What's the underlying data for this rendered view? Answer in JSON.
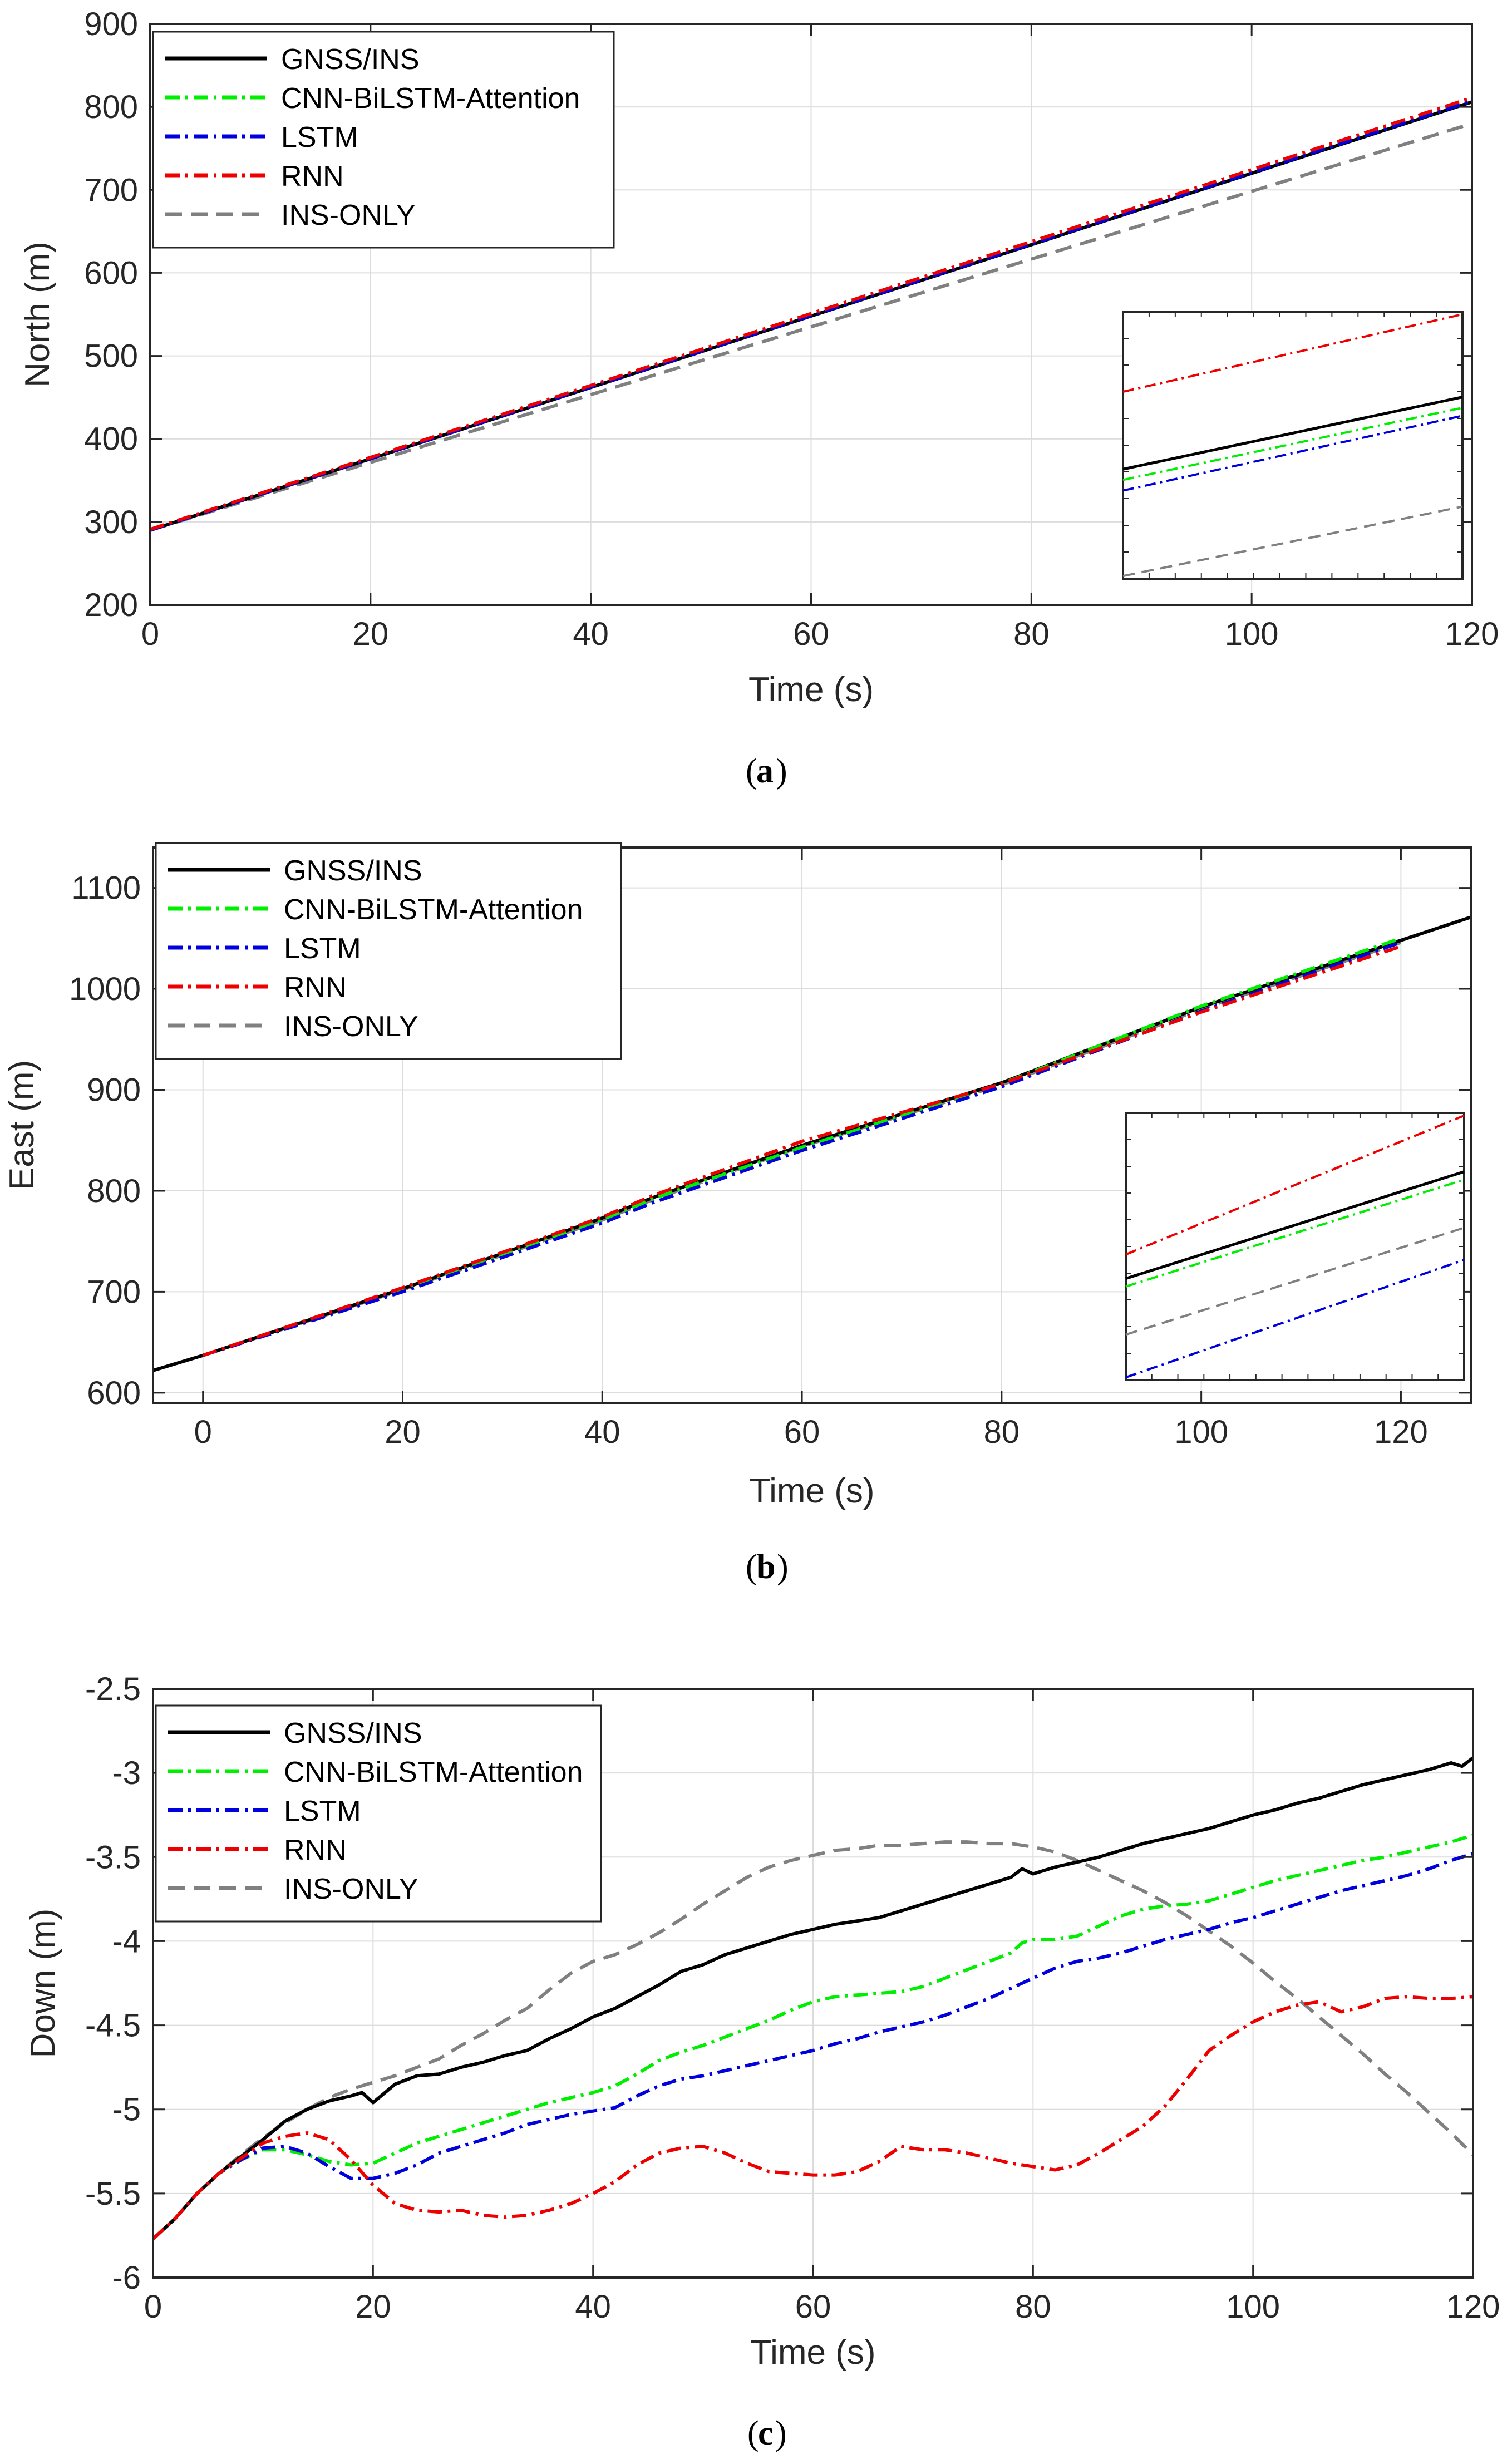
{
  "colors": {
    "gnss": "#000000",
    "cnn": "#00ee00",
    "lstm": "#0000dd",
    "rnn": "#ee0000",
    "ins": "#808080",
    "grid": "#dcdcdc",
    "axis": "#262626"
  },
  "chart_data": [
    {
      "id": "a",
      "type": "line",
      "caption": "a",
      "xlabel": "Time (s)",
      "ylabel": "North (m)",
      "xlim": [
        0,
        120
      ],
      "ylim": [
        200,
        900
      ],
      "xticks": [
        0,
        20,
        40,
        60,
        80,
        100,
        120
      ],
      "xtick_labels": [
        "0",
        "20",
        "40",
        "60",
        "80",
        "100",
        "120"
      ],
      "yticks": [
        200,
        300,
        400,
        500,
        600,
        700,
        800,
        900
      ],
      "ytick_labels": [
        "200",
        "300",
        "400",
        "500",
        "600",
        "700",
        "800",
        "900"
      ],
      "grid": true,
      "legend_position": "top-left",
      "series": [
        {
          "name": "GNSS/INS",
          "color": "gnss",
          "style": "solid",
          "x": [
            0,
            120
          ],
          "y": [
            290,
            806
          ]
        },
        {
          "name": "CNN-BiLSTM-Attention",
          "color": "cnn",
          "style": "dashdot",
          "x": [
            0,
            120
          ],
          "y": [
            290,
            808
          ]
        },
        {
          "name": "LSTM",
          "color": "lstm",
          "style": "dashdot",
          "x": [
            0,
            120
          ],
          "y": [
            290,
            807
          ]
        },
        {
          "name": "RNN",
          "color": "rnn",
          "style": "dashdot",
          "x": [
            0,
            120
          ],
          "y": [
            291,
            811
          ]
        },
        {
          "name": "INS-ONLY",
          "color": "ins",
          "style": "dashed",
          "x": [
            0,
            120
          ],
          "y": [
            290,
            780
          ]
        }
      ],
      "inset": {
        "series": [
          {
            "color": "rnn",
            "style": "dashdot",
            "y": [
              0.7,
              0.99
            ]
          },
          {
            "color": "gnss",
            "style": "solid",
            "y": [
              0.41,
              0.68
            ]
          },
          {
            "color": "cnn",
            "style": "dashdot",
            "y": [
              0.37,
              0.64
            ]
          },
          {
            "color": "lstm",
            "style": "dashdot",
            "y": [
              0.33,
              0.61
            ]
          },
          {
            "color": "ins",
            "style": "dashed",
            "y": [
              0.01,
              0.27
            ]
          }
        ]
      }
    },
    {
      "id": "b",
      "type": "line",
      "caption": "b",
      "xlabel": "Time (s)",
      "ylabel": "East (m)",
      "xlim": [
        -5,
        127
      ],
      "ylim": [
        590,
        1140
      ],
      "xticks": [
        0,
        20,
        40,
        60,
        80,
        100,
        120
      ],
      "xtick_labels": [
        "0",
        "20",
        "40",
        "60",
        "80",
        "100",
        "120"
      ],
      "yticks": [
        600,
        700,
        800,
        900,
        1000,
        1100
      ],
      "ytick_labels": [
        "600",
        "700",
        "800",
        "900",
        "1000",
        "1100"
      ],
      "grid": true,
      "legend_position": "top-left",
      "series": [
        {
          "name": "GNSS/INS",
          "color": "gnss",
          "style": "solid",
          "x": [
            -5,
            0,
            20,
            40,
            45,
            60,
            80,
            100,
            120,
            127
          ],
          "y": [
            622,
            637,
            703,
            773,
            793,
            845,
            907,
            982,
            1048,
            1071
          ]
        },
        {
          "name": "CNN-BiLSTM-Attention",
          "color": "cnn",
          "style": "dashdot",
          "x": [
            0,
            20,
            40,
            45,
            60,
            80,
            100,
            120
          ],
          "y": [
            637,
            702,
            771,
            792,
            843,
            906,
            983,
            1050
          ]
        },
        {
          "name": "LSTM",
          "color": "lstm",
          "style": "dashdot",
          "x": [
            0,
            20,
            40,
            45,
            60,
            80,
            100,
            120
          ],
          "y": [
            637,
            700,
            768,
            788,
            840,
            903,
            978,
            1046
          ]
        },
        {
          "name": "RNN",
          "color": "rnn",
          "style": "dashdot",
          "x": [
            0,
            20,
            40,
            45,
            60,
            80,
            100,
            120
          ],
          "y": [
            637,
            704,
            774,
            795,
            849,
            906,
            977,
            1042
          ]
        },
        {
          "name": "INS-ONLY",
          "color": "ins",
          "style": "dashed",
          "x": [
            0,
            20,
            40,
            45,
            60,
            80,
            100,
            120
          ],
          "y": [
            637,
            702,
            771,
            791,
            844,
            905,
            980,
            1046
          ]
        }
      ],
      "inset": {
        "series": [
          {
            "color": "rnn",
            "style": "dashdot",
            "y": [
              0.47,
              0.99
            ]
          },
          {
            "color": "gnss",
            "style": "solid",
            "y": [
              0.38,
              0.78
            ]
          },
          {
            "color": "cnn",
            "style": "dashdot",
            "y": [
              0.35,
              0.75
            ]
          },
          {
            "color": "ins",
            "style": "dashed",
            "y": [
              0.17,
              0.57
            ]
          },
          {
            "color": "lstm",
            "style": "dashdot",
            "y": [
              0.01,
              0.45
            ]
          }
        ]
      }
    },
    {
      "id": "c",
      "type": "line",
      "caption": "c",
      "xlabel": "Time (s)",
      "ylabel": "Down (m)",
      "xlim": [
        0,
        120
      ],
      "ylim": [
        -6,
        -2.5
      ],
      "xticks": [
        0,
        20,
        40,
        60,
        80,
        100,
        120
      ],
      "xtick_labels": [
        "0",
        "20",
        "40",
        "60",
        "80",
        "100",
        "120"
      ],
      "yticks": [
        -6,
        -5.5,
        -5,
        -4.5,
        -4,
        -3.5,
        -3,
        -2.5
      ],
      "ytick_labels": [
        "-6",
        "-5.5",
        "-5",
        "-4.5",
        "-4",
        "-3.5",
        "-3",
        "-2.5"
      ],
      "grid": true,
      "legend_position": "top-left",
      "series": [
        {
          "name": "GNSS/INS",
          "color": "gnss",
          "style": "solid",
          "x": [
            0,
            2,
            4,
            6,
            8,
            10,
            12,
            14,
            16,
            18,
            19,
            20,
            22,
            24,
            26,
            28,
            30,
            32,
            34,
            36,
            38,
            40,
            42,
            44,
            46,
            48,
            50,
            52,
            54,
            56,
            58,
            60,
            62,
            64,
            66,
            68,
            70,
            72,
            74,
            76,
            78,
            79,
            80,
            82,
            84,
            86,
            88,
            90,
            92,
            94,
            96,
            98,
            100,
            102,
            104,
            106,
            108,
            110,
            112,
            114,
            116,
            118,
            119,
            120
          ],
          "y": [
            -5.77,
            -5.65,
            -5.5,
            -5.38,
            -5.28,
            -5.18,
            -5.07,
            -5.0,
            -4.95,
            -4.92,
            -4.9,
            -4.96,
            -4.85,
            -4.8,
            -4.79,
            -4.75,
            -4.72,
            -4.68,
            -4.65,
            -4.58,
            -4.52,
            -4.45,
            -4.4,
            -4.33,
            -4.26,
            -4.18,
            -4.14,
            -4.08,
            -4.04,
            -4.0,
            -3.96,
            -3.93,
            -3.9,
            -3.88,
            -3.86,
            -3.82,
            -3.78,
            -3.74,
            -3.7,
            -3.66,
            -3.62,
            -3.57,
            -3.6,
            -3.56,
            -3.53,
            -3.5,
            -3.46,
            -3.42,
            -3.39,
            -3.36,
            -3.33,
            -3.29,
            -3.25,
            -3.22,
            -3.18,
            -3.15,
            -3.11,
            -3.07,
            -3.04,
            -3.01,
            -2.98,
            -2.94,
            -2.96,
            -2.91
          ]
        },
        {
          "name": "CNN-BiLSTM-Attention",
          "color": "cnn",
          "style": "dashdot",
          "x": [
            0,
            2,
            4,
            6,
            8,
            10,
            12,
            14,
            16,
            18,
            20,
            22,
            24,
            26,
            28,
            30,
            32,
            34,
            36,
            38,
            40,
            42,
            44,
            46,
            48,
            50,
            52,
            54,
            56,
            58,
            60,
            62,
            64,
            66,
            68,
            70,
            72,
            74,
            76,
            78,
            79,
            80,
            82,
            84,
            86,
            88,
            90,
            92,
            94,
            96,
            98,
            100,
            102,
            104,
            106,
            108,
            110,
            112,
            114,
            116,
            118,
            120
          ],
          "y": [
            -5.77,
            -5.65,
            -5.5,
            -5.38,
            -5.3,
            -5.24,
            -5.24,
            -5.27,
            -5.31,
            -5.33,
            -5.32,
            -5.26,
            -5.2,
            -5.16,
            -5.12,
            -5.08,
            -5.04,
            -5.0,
            -4.96,
            -4.93,
            -4.9,
            -4.86,
            -4.79,
            -4.71,
            -4.66,
            -4.62,
            -4.57,
            -4.52,
            -4.47,
            -4.41,
            -4.36,
            -4.33,
            -4.32,
            -4.31,
            -4.3,
            -4.27,
            -4.22,
            -4.17,
            -4.12,
            -4.07,
            -4.01,
            -3.99,
            -3.99,
            -3.97,
            -3.91,
            -3.85,
            -3.81,
            -3.79,
            -3.78,
            -3.76,
            -3.72,
            -3.68,
            -3.64,
            -3.61,
            -3.58,
            -3.55,
            -3.52,
            -3.5,
            -3.47,
            -3.44,
            -3.41,
            -3.37
          ]
        },
        {
          "name": "LSTM",
          "color": "lstm",
          "style": "dashdot",
          "x": [
            0,
            2,
            4,
            6,
            8,
            10,
            12,
            14,
            16,
            18,
            20,
            22,
            24,
            26,
            28,
            30,
            32,
            34,
            36,
            38,
            40,
            42,
            44,
            46,
            48,
            50,
            52,
            54,
            56,
            58,
            60,
            62,
            64,
            66,
            68,
            70,
            72,
            74,
            76,
            78,
            80,
            82,
            84,
            86,
            88,
            90,
            92,
            94,
            96,
            98,
            100,
            102,
            104,
            106,
            108,
            110,
            112,
            114,
            116,
            118,
            120
          ],
          "y": [
            -5.77,
            -5.65,
            -5.5,
            -5.38,
            -5.3,
            -5.23,
            -5.22,
            -5.26,
            -5.34,
            -5.41,
            -5.41,
            -5.38,
            -5.33,
            -5.26,
            -5.22,
            -5.18,
            -5.14,
            -5.09,
            -5.06,
            -5.03,
            -5.01,
            -4.99,
            -4.92,
            -4.86,
            -4.82,
            -4.8,
            -4.77,
            -4.74,
            -4.71,
            -4.68,
            -4.65,
            -4.61,
            -4.58,
            -4.54,
            -4.51,
            -4.48,
            -4.44,
            -4.39,
            -4.34,
            -4.28,
            -4.22,
            -4.16,
            -4.12,
            -4.1,
            -4.07,
            -4.03,
            -3.99,
            -3.96,
            -3.93,
            -3.89,
            -3.86,
            -3.82,
            -3.78,
            -3.74,
            -3.7,
            -3.67,
            -3.64,
            -3.61,
            -3.57,
            -3.52,
            -3.48
          ]
        },
        {
          "name": "RNN",
          "color": "rnn",
          "style": "dashdot",
          "x": [
            0,
            2,
            4,
            6,
            8,
            10,
            12,
            14,
            16,
            18,
            20,
            22,
            24,
            26,
            28,
            30,
            32,
            34,
            36,
            38,
            40,
            42,
            44,
            46,
            48,
            50,
            52,
            54,
            56,
            58,
            60,
            62,
            64,
            66,
            68,
            70,
            72,
            74,
            76,
            78,
            80,
            82,
            84,
            86,
            88,
            90,
            92,
            94,
            96,
            98,
            100,
            102,
            104,
            106,
            108,
            110,
            112,
            114,
            116,
            118,
            120
          ],
          "y": [
            -5.77,
            -5.65,
            -5.5,
            -5.38,
            -5.29,
            -5.2,
            -5.16,
            -5.14,
            -5.18,
            -5.3,
            -5.45,
            -5.56,
            -5.6,
            -5.61,
            -5.6,
            -5.63,
            -5.64,
            -5.63,
            -5.6,
            -5.56,
            -5.5,
            -5.43,
            -5.33,
            -5.26,
            -5.23,
            -5.22,
            -5.26,
            -5.32,
            -5.37,
            -5.38,
            -5.39,
            -5.39,
            -5.37,
            -5.31,
            -5.22,
            -5.24,
            -5.24,
            -5.26,
            -5.29,
            -5.32,
            -5.34,
            -5.36,
            -5.33,
            -5.26,
            -5.18,
            -5.1,
            -4.98,
            -4.82,
            -4.65,
            -4.56,
            -4.48,
            -4.42,
            -4.38,
            -4.36,
            -4.42,
            -4.39,
            -4.34,
            -4.33,
            -4.34,
            -4.34,
            -4.33
          ]
        },
        {
          "name": "INS-ONLY",
          "color": "ins",
          "style": "dashed",
          "x": [
            0,
            2,
            4,
            6,
            8,
            10,
            12,
            14,
            16,
            18,
            20,
            22,
            24,
            26,
            28,
            30,
            32,
            34,
            36,
            38,
            40,
            42,
            44,
            46,
            48,
            50,
            52,
            54,
            56,
            58,
            60,
            62,
            64,
            66,
            68,
            70,
            72,
            74,
            76,
            78,
            80,
            82,
            84,
            86,
            88,
            90,
            92,
            94,
            96,
            98,
            100,
            102,
            104,
            106,
            108,
            110,
            112,
            114,
            116,
            118,
            120
          ],
          "y": [
            -5.77,
            -5.65,
            -5.5,
            -5.38,
            -5.27,
            -5.17,
            -5.08,
            -5.0,
            -4.93,
            -4.88,
            -4.84,
            -4.8,
            -4.75,
            -4.7,
            -4.62,
            -4.55,
            -4.47,
            -4.4,
            -4.29,
            -4.19,
            -4.12,
            -4.08,
            -4.02,
            -3.95,
            -3.87,
            -3.78,
            -3.7,
            -3.62,
            -3.56,
            -3.52,
            -3.49,
            -3.46,
            -3.45,
            -3.43,
            -3.43,
            -3.42,
            -3.41,
            -3.41,
            -3.42,
            -3.42,
            -3.44,
            -3.47,
            -3.52,
            -3.58,
            -3.64,
            -3.7,
            -3.77,
            -3.85,
            -3.94,
            -4.03,
            -4.13,
            -4.24,
            -4.34,
            -4.45,
            -4.56,
            -4.67,
            -4.79,
            -4.9,
            -5.02,
            -5.14,
            -5.27
          ]
        }
      ]
    }
  ]
}
